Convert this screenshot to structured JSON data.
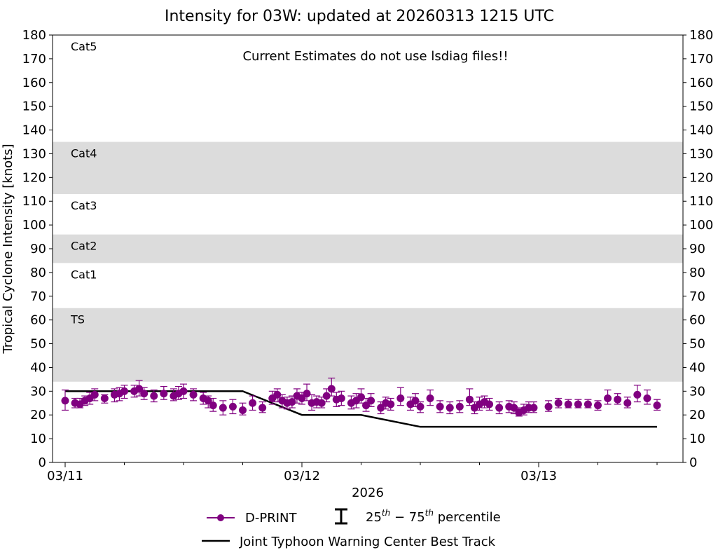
{
  "title": "Intensity for 03W: updated at 20260313 1215 UTC",
  "annotation": "Current Estimates do not use lsdiag files!!",
  "legend": {
    "dprint": "D-PRINT",
    "percentile_base": "25",
    "percentile_sup1": "th",
    "percentile_mid": " − 75",
    "percentile_sup2": "th",
    "percentile_tail": " percentile",
    "besttrack": "Joint Typhoon Warning Center Best Track"
  },
  "colors": {
    "dprint": "#800080",
    "besttrack": "#000000",
    "band": "#dcdcdc"
  },
  "chart_data": {
    "type": "scatter",
    "title": "Intensity for 03W: updated at 20260313 1215 UTC",
    "xlabel": "2026",
    "ylabel": "Tropical Cyclone Intensity [knots]",
    "ylim": [
      0,
      180
    ],
    "yticks": [
      0,
      10,
      20,
      30,
      40,
      50,
      60,
      70,
      80,
      90,
      100,
      110,
      120,
      130,
      140,
      150,
      160,
      170,
      180
    ],
    "xlim": [
      "03/11 00:00",
      "03/13 14:30"
    ],
    "xticks": [
      "03/11",
      "03/12",
      "03/13"
    ],
    "grid": false,
    "legend_position": "bottom-center",
    "categories_bands": [
      {
        "label": "Cat5",
        "lo": 137,
        "hi": 180,
        "shaded": false
      },
      {
        "label": "Cat4",
        "lo": 113,
        "hi": 135,
        "shaded": true
      },
      {
        "label": "Cat3",
        "lo": 96,
        "hi": 113,
        "shaded": false
      },
      {
        "label": "Cat2",
        "lo": 84,
        "hi": 96,
        "shaded": true
      },
      {
        "label": "Cat1",
        "lo": 64,
        "hi": 84,
        "shaded": false
      },
      {
        "label": "TS",
        "lo": 34,
        "hi": 65,
        "shaded": true
      }
    ],
    "series": [
      {
        "name": "D-PRINT",
        "x": [
          "03/11 00:00",
          "03/11 01:00",
          "03/11 01:30",
          "03/11 02:00",
          "03/11 02:30",
          "03/11 03:00",
          "03/11 04:00",
          "03/11 05:00",
          "03/11 05:30",
          "03/11 06:00",
          "03/11 07:00",
          "03/11 07:30",
          "03/11 08:00",
          "03/11 09:00",
          "03/11 10:00",
          "03/11 11:00",
          "03/11 11:30",
          "03/11 12:00",
          "03/11 13:00",
          "03/11 14:00",
          "03/11 14:30",
          "03/11 15:00",
          "03/11 16:00",
          "03/11 17:00",
          "03/11 18:00",
          "03/11 19:00",
          "03/11 20:00",
          "03/11 21:00",
          "03/11 21:30",
          "03/11 22:00",
          "03/11 22:30",
          "03/11 23:00",
          "03/11 23:30",
          "03/12 00:00",
          "03/12 00:30",
          "03/12 01:00",
          "03/12 01:30",
          "03/12 02:00",
          "03/12 02:30",
          "03/12 03:00",
          "03/12 03:30",
          "03/12 04:00",
          "03/12 05:00",
          "03/12 05:30",
          "03/12 06:00",
          "03/12 06:30",
          "03/12 07:00",
          "03/12 08:00",
          "03/12 08:30",
          "03/12 09:00",
          "03/12 10:00",
          "03/12 11:00",
          "03/12 11:30",
          "03/12 12:00",
          "03/12 13:00",
          "03/12 14:00",
          "03/12 15:00",
          "03/12 16:00",
          "03/12 17:00",
          "03/12 17:30",
          "03/12 18:00",
          "03/12 18:30",
          "03/12 19:00",
          "03/12 20:00",
          "03/12 21:00",
          "03/12 21:30",
          "03/12 22:00",
          "03/12 22:30",
          "03/12 23:00",
          "03/12 23:30",
          "03/13 01:00",
          "03/13 02:00",
          "03/13 03:00",
          "03/13 04:00",
          "03/13 05:00",
          "03/13 06:00",
          "03/13 07:00",
          "03/13 08:00",
          "03/13 09:00",
          "03/13 10:00",
          "03/13 11:00",
          "03/13 12:00"
        ],
        "y": [
          26,
          25,
          24.5,
          26,
          27,
          28.5,
          27,
          28.5,
          29,
          30,
          30,
          31,
          29,
          28,
          29,
          28,
          29,
          30,
          28.5,
          27,
          26,
          24,
          23,
          23.5,
          22,
          25,
          23,
          27,
          28.5,
          26,
          25,
          25.5,
          28,
          27,
          29,
          25,
          25.5,
          25,
          28,
          31,
          26.5,
          27,
          25,
          26,
          27.5,
          24,
          26,
          23,
          25,
          24.5,
          27,
          24.5,
          26,
          23.5,
          27,
          23.5,
          23,
          23.5,
          26.5,
          23,
          24.5,
          25.5,
          24.5,
          23,
          23.5,
          23,
          21,
          22,
          23,
          23,
          23.5,
          25,
          24.5,
          24.5,
          24.5,
          24,
          27,
          26.5,
          25,
          28.5,
          27,
          24
        ],
        "p25": [
          22,
          23,
          23,
          24,
          24.5,
          26,
          25,
          25.5,
          26,
          27,
          27.5,
          28,
          26.5,
          25.5,
          26.5,
          26,
          26.5,
          27,
          26,
          24.5,
          23,
          21.5,
          20,
          20.5,
          20,
          22,
          21,
          24.5,
          25.5,
          23,
          22.5,
          23,
          25,
          24.5,
          26,
          22,
          23,
          23,
          25.5,
          28,
          23.5,
          24,
          22.5,
          23,
          25,
          21.5,
          23.5,
          20.5,
          22.5,
          22,
          24,
          22,
          23.5,
          21,
          24,
          21,
          20.5,
          21,
          24,
          20.5,
          22,
          23,
          22,
          20.5,
          21,
          20.5,
          19.5,
          20,
          21,
          21,
          21.5,
          23,
          23,
          23,
          23,
          22,
          24.5,
          24.5,
          23,
          25.5,
          24.5,
          22
        ],
        "p75": [
          30.5,
          27,
          27,
          28,
          29.5,
          31,
          28.5,
          31,
          31.5,
          32.5,
          32.5,
          34.5,
          31.5,
          30.5,
          32,
          31,
          32,
          33,
          31,
          29.5,
          28,
          27,
          26,
          26.5,
          25,
          28,
          25.5,
          30,
          31,
          28.5,
          27.5,
          28,
          31,
          29.5,
          33,
          28.5,
          28,
          27.5,
          31,
          35.5,
          29.5,
          30,
          28,
          29,
          31,
          27,
          29,
          25.5,
          27.5,
          27,
          31.5,
          27.5,
          29,
          25.5,
          30.5,
          26,
          25.5,
          26,
          31,
          25.5,
          27.5,
          28,
          27,
          25.5,
          26,
          25.5,
          23,
          24.5,
          25.5,
          25.5,
          26,
          27,
          26.5,
          26.5,
          26.5,
          26,
          30.5,
          29,
          27.5,
          32.5,
          30.5,
          26.5
        ]
      },
      {
        "name": "Joint Typhoon Warning Center Best Track",
        "x": [
          "03/11 00:00",
          "03/11 18:00",
          "03/12 00:00",
          "03/12 06:00",
          "03/12 12:00",
          "03/13 12:00"
        ],
        "y": [
          30,
          30,
          20,
          20,
          15,
          15
        ]
      }
    ]
  }
}
